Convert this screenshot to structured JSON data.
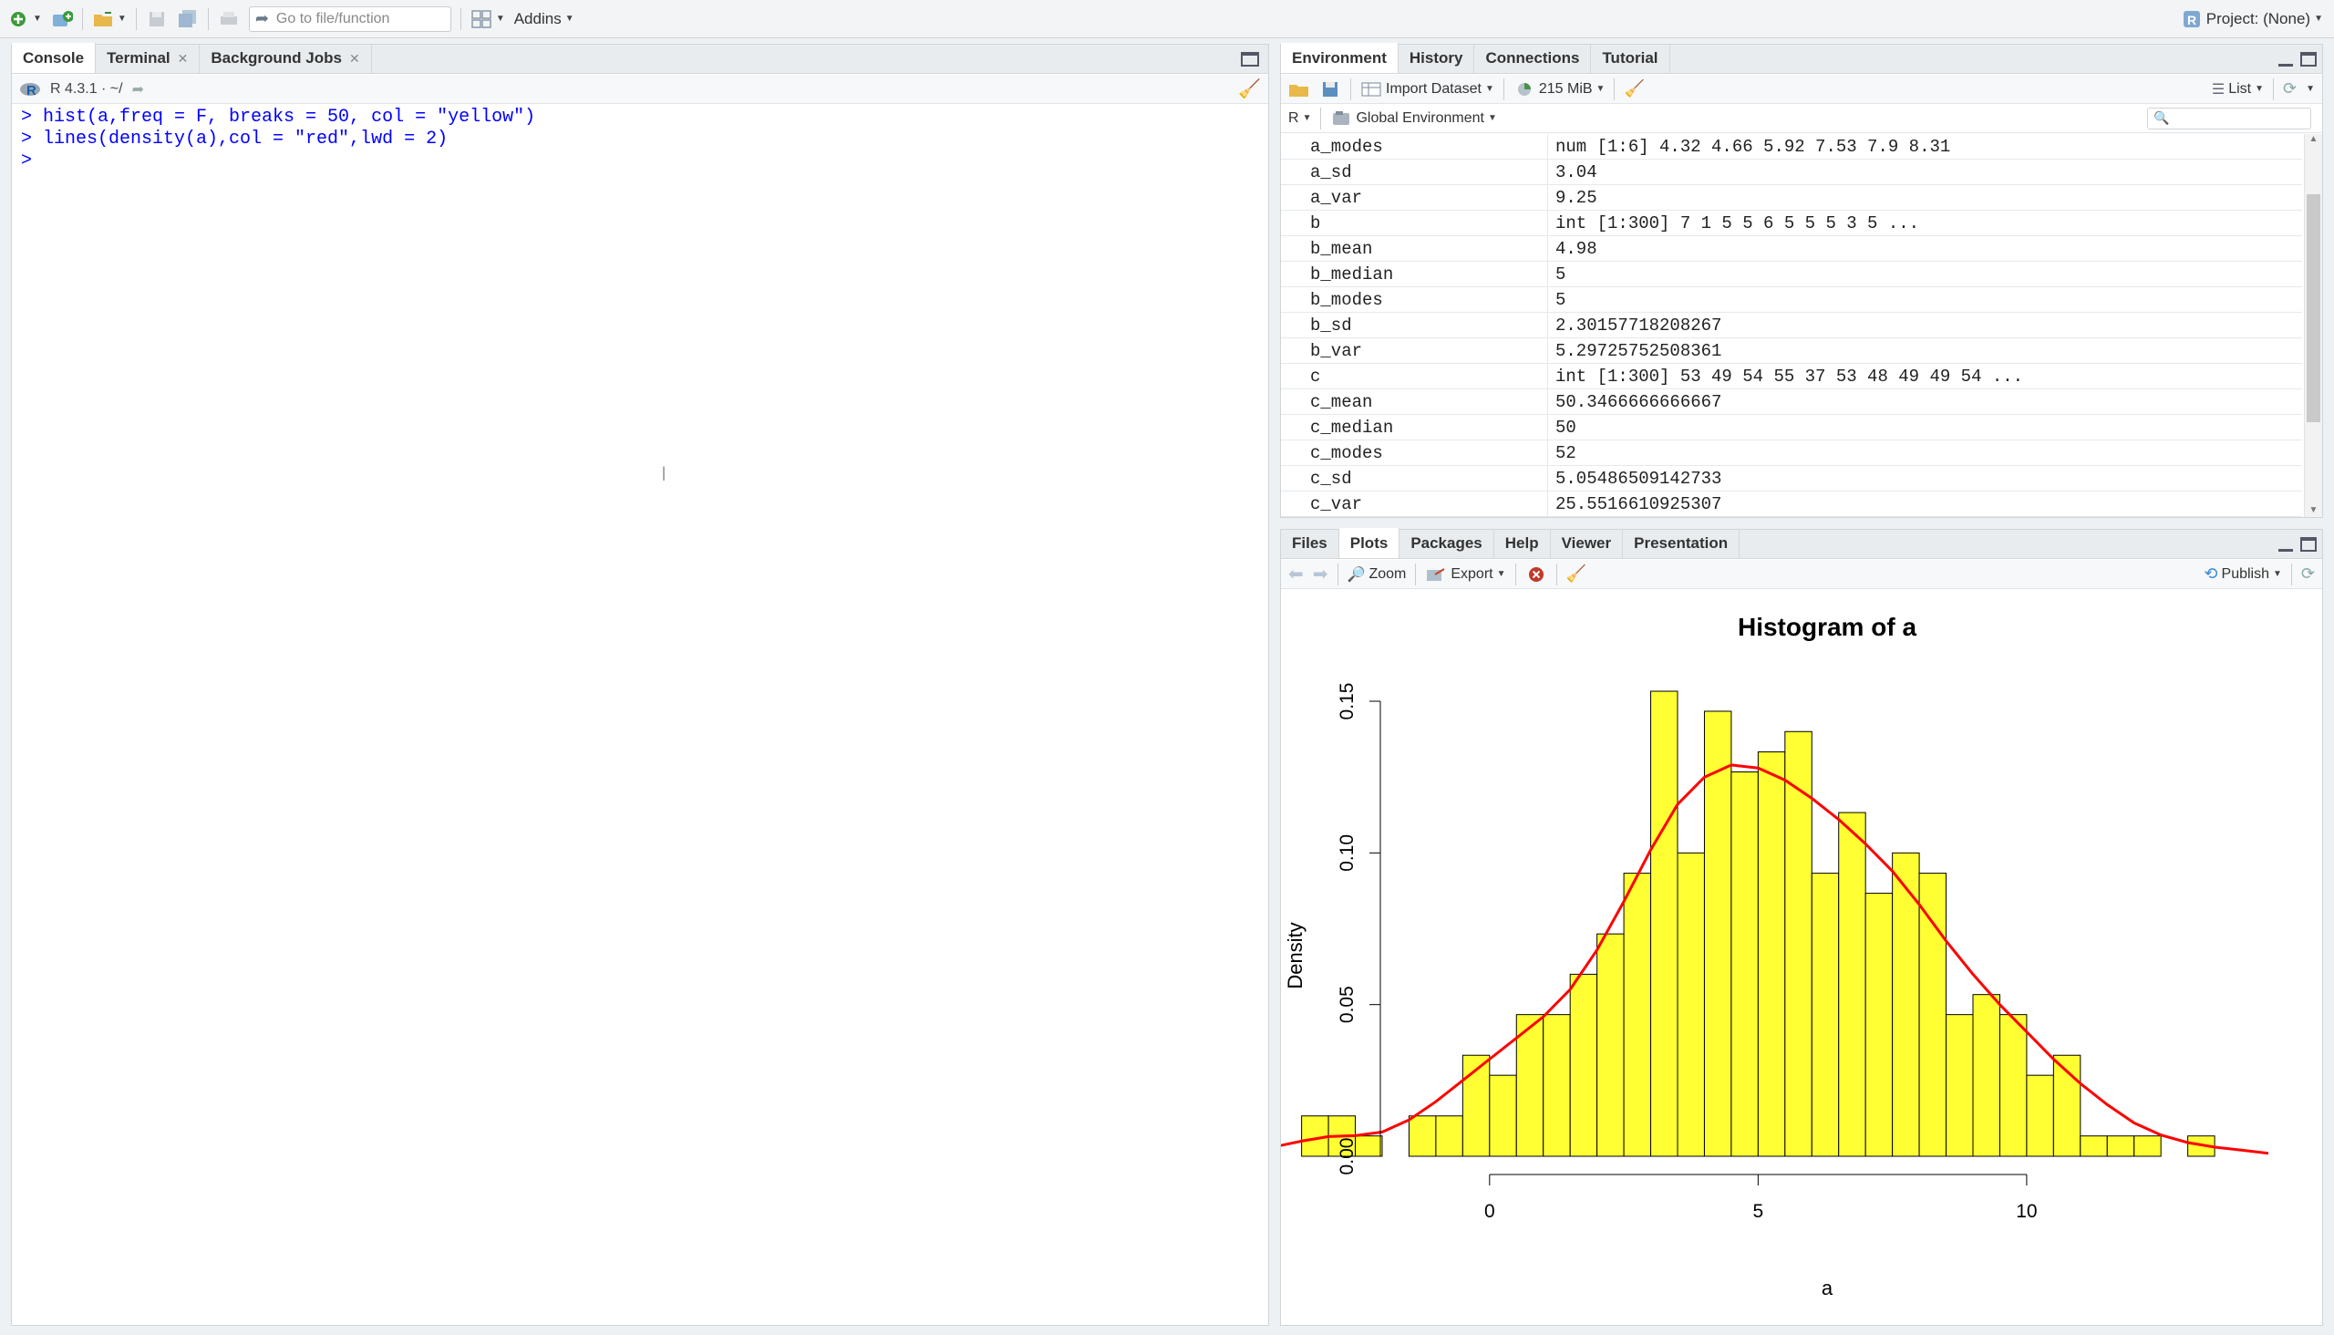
{
  "toolbar": {
    "goto_placeholder": "Go to file/function",
    "addins_label": "Addins",
    "project_label": "Project: (None)"
  },
  "console": {
    "tabs": [
      {
        "label": "Console"
      },
      {
        "label": "Terminal"
      },
      {
        "label": "Background Jobs"
      }
    ],
    "r_version": "R 4.3.1 · ~/",
    "lines": [
      "> hist(a,freq = F, breaks = 50, col = \"yellow\")",
      "> lines(density(a),col = \"red\",lwd = 2)",
      ">"
    ]
  },
  "environment": {
    "tabs": [
      {
        "label": "Environment"
      },
      {
        "label": "History"
      },
      {
        "label": "Connections"
      },
      {
        "label": "Tutorial"
      }
    ],
    "import_label": "Import Dataset",
    "memory_label": "215 MiB",
    "view_label": "List",
    "lang_label": "R",
    "scope_label": "Global Environment",
    "rows": [
      {
        "name": "a_modes",
        "value": "num [1:6] 4.32 4.66 5.92 7.53 7.9 8.31"
      },
      {
        "name": "a_sd",
        "value": "3.04"
      },
      {
        "name": "a_var",
        "value": "9.25"
      },
      {
        "name": "b",
        "value": "int [1:300] 7 1 5 5 6 5 5 5 3 5 ..."
      },
      {
        "name": "b_mean",
        "value": "4.98"
      },
      {
        "name": "b_median",
        "value": "5"
      },
      {
        "name": "b_modes",
        "value": "5"
      },
      {
        "name": "b_sd",
        "value": "2.30157718208267"
      },
      {
        "name": "b_var",
        "value": "5.29725752508361"
      },
      {
        "name": "c",
        "value": "int [1:300] 53 49 54 55 37 53 48 49 49 54 ..."
      },
      {
        "name": "c_mean",
        "value": "50.3466666666667"
      },
      {
        "name": "c_median",
        "value": "50"
      },
      {
        "name": "c_modes",
        "value": "52"
      },
      {
        "name": "c_sd",
        "value": "5.05486509142733"
      },
      {
        "name": "c_var",
        "value": "25.5516610925307"
      }
    ]
  },
  "files_panel": {
    "tabs": [
      {
        "label": "Files"
      },
      {
        "label": "Plots"
      },
      {
        "label": "Packages"
      },
      {
        "label": "Help"
      },
      {
        "label": "Viewer"
      },
      {
        "label": "Presentation"
      }
    ],
    "zoom_label": "Zoom",
    "export_label": "Export",
    "publish_label": "Publish"
  },
  "chart_data": {
    "type": "bar",
    "title": "Histogram of a",
    "xlabel": "a",
    "ylabel": "Density",
    "xlim": [
      -2,
      14.5
    ],
    "ylim": [
      0,
      0.15
    ],
    "x_ticks": [
      0,
      5,
      10
    ],
    "y_ticks": [
      "0.00",
      "0.05",
      "0.10",
      "0.15"
    ],
    "bin_width": 0.5,
    "bin_starts": [
      -3.5,
      -3,
      -2.5,
      -2,
      -1.5,
      -1,
      -0.5,
      0,
      0.5,
      1,
      1.5,
      2,
      2.5,
      3,
      3.5,
      4,
      4.5,
      5,
      5.5,
      6,
      6.5,
      7,
      7.5,
      8,
      8.5,
      9,
      9.5,
      10,
      10.5,
      11,
      11.5,
      12,
      12.5,
      13,
      13.5
    ],
    "values": [
      0.0133,
      0.0133,
      0.0067,
      0,
      0.0133,
      0.0133,
      0.0333,
      0.0267,
      0.0467,
      0.0467,
      0.06,
      0.0733,
      0.0933,
      0.1533,
      0.1,
      0.1467,
      0.1267,
      0.1333,
      0.14,
      0.0933,
      0.1133,
      0.0867,
      0.1,
      0.0933,
      0.0467,
      0.0533,
      0.0467,
      0.0267,
      0.0333,
      0.0067,
      0.0067,
      0.0067,
      0,
      0.0067,
      0
    ],
    "bar_color": "#ffff33",
    "density_color": "#ff0000",
    "density_curve": {
      "x": [
        -4.3,
        -3.5,
        -3,
        -2.5,
        -2,
        -1.5,
        -1,
        -0.5,
        0,
        0.5,
        1,
        1.5,
        2,
        2.5,
        3,
        3.5,
        4,
        4.5,
        5,
        5.5,
        6,
        6.5,
        7,
        7.5,
        8,
        8.5,
        9,
        9.5,
        10,
        10.5,
        11,
        11.5,
        12,
        12.5,
        13,
        13.5,
        14,
        14.5
      ],
      "y": [
        0.002,
        0.005,
        0.0065,
        0.0068,
        0.008,
        0.012,
        0.018,
        0.025,
        0.032,
        0.039,
        0.046,
        0.055,
        0.068,
        0.084,
        0.101,
        0.116,
        0.125,
        0.129,
        0.128,
        0.124,
        0.118,
        0.111,
        0.103,
        0.094,
        0.083,
        0.071,
        0.06,
        0.05,
        0.041,
        0.032,
        0.024,
        0.017,
        0.011,
        0.007,
        0.0045,
        0.003,
        0.002,
        0.001
      ]
    }
  }
}
